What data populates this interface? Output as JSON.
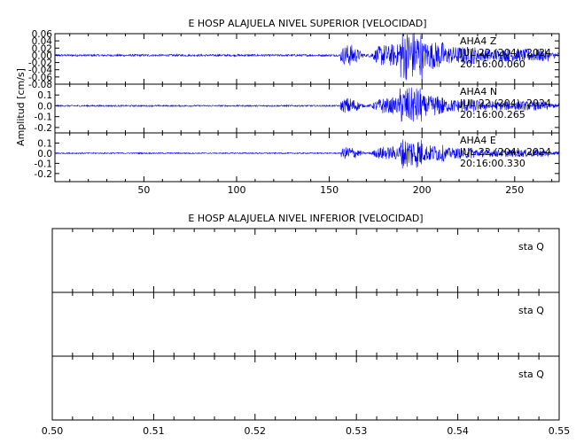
{
  "colors": {
    "trace": "#0000ff",
    "axes": "#000000",
    "background": "#ffffff"
  },
  "chart_data": [
    {
      "type": "line",
      "title": "E HOSP ALAJUELA NIVEL SUPERIOR [VELOCIDAD]",
      "ylabel": "Amplitud [cm/s]",
      "xlim": [
        2,
        274
      ],
      "xticks": [
        50,
        100,
        150,
        200,
        250
      ],
      "xticklabels": [
        "50",
        "100",
        "150",
        "200",
        "250"
      ],
      "event_window": {
        "onset": 156,
        "peak": 195,
        "end": 268
      },
      "panels": [
        {
          "ylim": [
            -0.08,
            0.06
          ],
          "yticks": [
            0.06,
            0.04,
            0.02,
            0.0,
            -0.02,
            -0.04,
            -0.06,
            -0.08
          ],
          "yticklabels": [
            "0.06",
            "0.04",
            "0.02",
            "0.00",
            "-0.02",
            "-0.04",
            "-0.06",
            "-0.08"
          ],
          "peak_amplitude": 0.07,
          "annotation": [
            "AHA4   Z",
            "JUL 22 (204), 2024",
            "20:16:00.060"
          ]
        },
        {
          "ylim": [
            -0.25,
            0.2
          ],
          "yticks": [
            0.1,
            0.0,
            -0.1,
            -0.2
          ],
          "yticklabels": [
            "0.1",
            "0.0",
            "-0.1",
            "-0.2"
          ],
          "peak_amplitude": 0.17,
          "annotation": [
            "AHA4   N",
            "JUL 22 (204), 2024",
            "20:16:00.265"
          ]
        },
        {
          "ylim": [
            -0.28,
            0.2
          ],
          "yticks": [
            0.1,
            0.0,
            -0.1,
            -0.2
          ],
          "yticklabels": [
            "0.1",
            "0.0",
            "-0.1",
            "-0.2"
          ],
          "peak_amplitude": 0.15,
          "annotation": [
            "AHA4   E",
            "JUL 22 (204), 2024",
            "20:16:00.330"
          ]
        }
      ]
    },
    {
      "type": "line",
      "title": "E HOSP ALAJUELA NIVEL INFERIOR [VELOCIDAD]",
      "xlim": [
        0.5,
        0.55
      ],
      "xticks": [
        0.5,
        0.51,
        0.52,
        0.53,
        0.54,
        0.55
      ],
      "xticklabels": [
        "0.50",
        "0.51",
        "0.52",
        "0.53",
        "0.54",
        "0.55"
      ],
      "panels": [
        {
          "annotation": "sta   Q"
        },
        {
          "annotation": "sta   Q"
        },
        {
          "annotation": "sta   Q"
        }
      ]
    }
  ]
}
